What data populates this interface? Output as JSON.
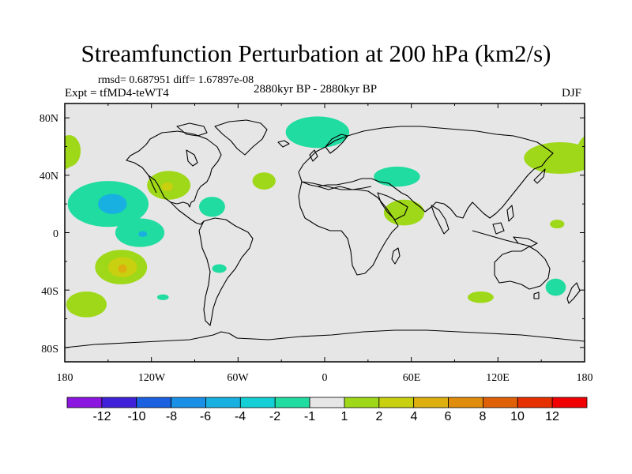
{
  "title": "Streamfunction Perturbation at 200 hPa (km2/s)",
  "stats": "rmsd= 0.687951 diff= 1.67897e-08",
  "experiment": "Expt = tfMD4-teWT4",
  "period": "2880kyr BP - 2880kyr BP",
  "season": "DJF",
  "x_ticks": [
    "180",
    "120W",
    "60W",
    "0",
    "60E",
    "120E",
    "180"
  ],
  "y_ticks": [
    "80N",
    "40N",
    "0",
    "40S",
    "80S"
  ],
  "colorbar": {
    "labels": [
      "-12",
      "-10",
      "-8",
      "-6",
      "-4",
      "-2",
      "-1",
      "1",
      "2",
      "4",
      "6",
      "8",
      "10",
      "12"
    ],
    "colors": [
      "#8b16e0",
      "#4020d8",
      "#1a60e0",
      "#1a8fe6",
      "#18b0e0",
      "#14cfd6",
      "#20dca0",
      "#e6e6e6",
      "#9ed818",
      "#c8d010",
      "#ddb010",
      "#e08c0c",
      "#e06008",
      "#e63000",
      "#f00000"
    ]
  },
  "map_data": {
    "projection": "cylindrical-equidistant",
    "lon_range": [
      -180,
      180
    ],
    "lat_range": [
      -90,
      90
    ],
    "background_color": "#e6e6e6",
    "anomalies": [
      {
        "name": "north-atlantic-positive-low",
        "lon": -5,
        "lat": 70,
        "rx_deg": 22,
        "ry_deg": 11,
        "fill": "#20dca0"
      },
      {
        "name": "central-asia-negative",
        "lon": 50,
        "lat": 39,
        "rx_deg": 16,
        "ry_deg": 7,
        "fill": "#20dca0"
      },
      {
        "name": "east-africa-positive",
        "lon": 55,
        "lat": 14,
        "rx_deg": 14,
        "ry_deg": 9,
        "fill": "#9ed818"
      },
      {
        "name": "west-pacific-north-positive",
        "lon": 163,
        "lat": 52,
        "rx_deg": 25,
        "ry_deg": 11,
        "fill": "#9ed818"
      },
      {
        "name": "dateline-north-positive",
        "lon": -177,
        "lat": 57,
        "rx_deg": 8,
        "ry_deg": 11,
        "fill": "#9ed818"
      },
      {
        "name": "north-pacific-negative",
        "lon": -150,
        "lat": 20,
        "rx_deg": 28,
        "ry_deg": 16,
        "fill": "#20dca0"
      },
      {
        "name": "north-pacific-negative-core",
        "lon": -147,
        "lat": 20,
        "rx_deg": 10,
        "ry_deg": 7,
        "fill": "#18b0e0"
      },
      {
        "name": "north-pacific-negative-tail",
        "lon": -128,
        "lat": 0,
        "rx_deg": 17,
        "ry_deg": 10,
        "fill": "#20dca0"
      },
      {
        "name": "north-pacific-negative-tail-core",
        "lon": -126,
        "lat": -1,
        "rx_deg": 3,
        "ry_deg": 2,
        "fill": "#18b0e0"
      },
      {
        "name": "western-us-positive",
        "lon": -108,
        "lat": 33,
        "rx_deg": 15,
        "ry_deg": 10,
        "fill": "#9ed818"
      },
      {
        "name": "western-us-positive-core",
        "lon": -109,
        "lat": 32,
        "rx_deg": 4,
        "ry_deg": 3,
        "fill": "#c8d010"
      },
      {
        "name": "caribbean-negative",
        "lon": -78,
        "lat": 18,
        "rx_deg": 9,
        "ry_deg": 7,
        "fill": "#20dca0"
      },
      {
        "name": "mid-atlantic-positive",
        "lon": -42,
        "lat": 36,
        "rx_deg": 8,
        "ry_deg": 6,
        "fill": "#9ed818"
      },
      {
        "name": "south-pacific-positive",
        "lon": -141,
        "lat": -24,
        "rx_deg": 18,
        "ry_deg": 12,
        "fill": "#9ed818"
      },
      {
        "name": "south-pacific-positive-core",
        "lon": -140,
        "lat": -24,
        "rx_deg": 10,
        "ry_deg": 7,
        "fill": "#c8d010"
      },
      {
        "name": "south-pacific-positive-center",
        "lon": -140,
        "lat": -25,
        "rx_deg": 3,
        "ry_deg": 3,
        "fill": "#ddb010"
      },
      {
        "name": "south-pacific-far-positive",
        "lon": -165,
        "lat": -50,
        "rx_deg": 14,
        "ry_deg": 9,
        "fill": "#9ed818"
      },
      {
        "name": "south-america-negative",
        "lon": -73,
        "lat": -25,
        "rx_deg": 5,
        "ry_deg": 3,
        "fill": "#20dca0"
      },
      {
        "name": "southeast-pacific-negative",
        "lon": -112,
        "lat": -45,
        "rx_deg": 4,
        "ry_deg": 2,
        "fill": "#20dca0"
      },
      {
        "name": "indian-ocean-positive",
        "lon": 108,
        "lat": -45,
        "rx_deg": 9,
        "ry_deg": 4,
        "fill": "#9ed818"
      },
      {
        "name": "tasman-negative",
        "lon": 160,
        "lat": -38,
        "rx_deg": 7,
        "ry_deg": 6,
        "fill": "#20dca0"
      },
      {
        "name": "west-pacific-tropical-positive",
        "lon": 161,
        "lat": 6,
        "rx_deg": 5,
        "ry_deg": 3,
        "fill": "#9ed818"
      }
    ]
  }
}
